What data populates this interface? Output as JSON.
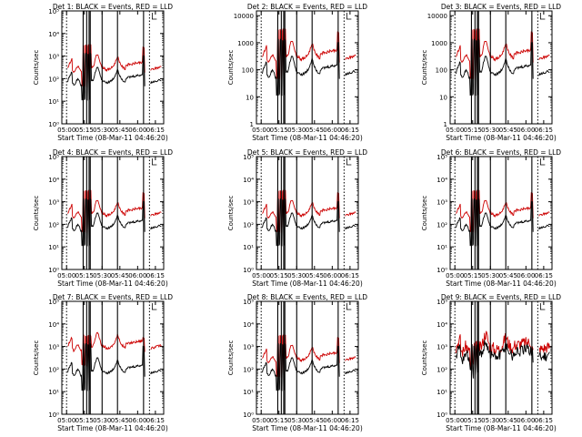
{
  "chart_data": [
    {
      "type": "line",
      "title": "Det 1: BLACK = Events, RED = LLD",
      "xlabel": "Start Time (08-Mar-11 04:46:20)",
      "ylabel": "Counts/sec",
      "yscale": "log",
      "yticks": [
        {
          "label": "10⁰",
          "value": 1
        },
        {
          "label": "10¹",
          "value": 10
        },
        {
          "label": "10²",
          "value": 100
        },
        {
          "label": "10³",
          "value": 1000
        },
        {
          "label": "10⁴",
          "value": 10000
        },
        {
          "label": "10⁵",
          "value": 100000
        }
      ],
      "ylim": [
        1,
        100000
      ],
      "xlim": [
        "04:56",
        "06:22"
      ],
      "xticks": [
        "05:00",
        "05:15",
        "05:30",
        "05:45",
        "06:00",
        "06:15"
      ],
      "dotted_lines": [
        "05:00",
        "06:10"
      ],
      "vertical_lines": [
        "05:14",
        "05:17",
        "05:19",
        "05:20",
        "05:30",
        "05:43",
        "06:05"
      ],
      "series": [
        {
          "color": "#cc0000",
          "base": 300,
          "spike": 6000
        },
        {
          "color": "#000000",
          "base": 80,
          "spike": 2500
        }
      ]
    },
    {
      "type": "line",
      "title": "Det 2: BLACK = Events, RED = LLD",
      "xlabel": "Start Time (08-Mar-11 04:46:20)",
      "ylabel": "Counts/sec",
      "yscale": "log",
      "yticks": [
        {
          "label": "1",
          "value": 1
        },
        {
          "label": "10",
          "value": 10
        },
        {
          "label": "100",
          "value": 100
        },
        {
          "label": "1000",
          "value": 1000
        },
        {
          "label": "10000",
          "value": 10000
        }
      ],
      "ylim": [
        1,
        15000
      ],
      "xlim": [
        "04:56",
        "06:22"
      ],
      "xticks": [
        "05:00",
        "05:15",
        "05:30",
        "05:45",
        "06:00",
        "06:15"
      ],
      "dotted_lines": [
        "05:00",
        "06:10"
      ],
      "vertical_lines": [
        "05:14",
        "05:17",
        "05:19",
        "05:20",
        "05:30",
        "05:43",
        "06:05"
      ],
      "series": [
        {
          "color": "#cc0000",
          "base": 300,
          "spike": 6000
        },
        {
          "color": "#000000",
          "base": 80,
          "spike": 2500
        }
      ]
    },
    {
      "type": "line",
      "title": "Det 3: BLACK = Events, RED = LLD",
      "xlabel": "Start Time (08-Mar-11 04:46:20)",
      "ylabel": "Counts/sec",
      "yscale": "log",
      "yticks": [
        {
          "label": "1",
          "value": 1
        },
        {
          "label": "10",
          "value": 10
        },
        {
          "label": "100",
          "value": 100
        },
        {
          "label": "1000",
          "value": 1000
        },
        {
          "label": "10000",
          "value": 10000
        }
      ],
      "ylim": [
        1,
        15000
      ],
      "xlim": [
        "04:56",
        "06:22"
      ],
      "xticks": [
        "05:00",
        "05:15",
        "05:30",
        "05:45",
        "06:00",
        "06:15"
      ],
      "dotted_lines": [
        "05:00",
        "06:10"
      ],
      "vertical_lines": [
        "05:14",
        "05:17",
        "05:19",
        "05:20",
        "05:30",
        "05:43",
        "06:05"
      ],
      "series": [
        {
          "color": "#cc0000",
          "base": 300,
          "spike": 6000
        },
        {
          "color": "#000000",
          "base": 80,
          "spike": 2500
        }
      ]
    },
    {
      "type": "line",
      "title": "Det 4: BLACK = Events, RED = LLD",
      "xlabel": "Start Time (08-Mar-11 04:46:20)",
      "ylabel": "Counts/sec",
      "yscale": "log",
      "yticks": [
        {
          "label": "10⁰",
          "value": 1
        },
        {
          "label": "10¹",
          "value": 10
        },
        {
          "label": "10²",
          "value": 100
        },
        {
          "label": "10³",
          "value": 1000
        },
        {
          "label": "10⁴",
          "value": 10000
        },
        {
          "label": "10⁵",
          "value": 100000
        }
      ],
      "ylim": [
        1,
        100000
      ],
      "xlim": [
        "04:56",
        "06:22"
      ],
      "xticks": [
        "05:00",
        "05:15",
        "05:30",
        "05:45",
        "06:00",
        "06:15"
      ],
      "dotted_lines": [
        "05:00",
        "06:10"
      ],
      "vertical_lines": [
        "05:14",
        "05:17",
        "05:19",
        "05:20",
        "05:30",
        "05:43",
        "06:05"
      ],
      "series": [
        {
          "color": "#cc0000",
          "base": 300,
          "spike": 6000
        },
        {
          "color": "#000000",
          "base": 80,
          "spike": 2500
        }
      ]
    },
    {
      "type": "line",
      "title": "Det 5: BLACK = Events, RED = LLD",
      "xlabel": "Start Time (08-Mar-11 04:46:20)",
      "ylabel": "Counts/sec",
      "yscale": "log",
      "yticks": [
        {
          "label": "10⁰",
          "value": 1
        },
        {
          "label": "10¹",
          "value": 10
        },
        {
          "label": "10²",
          "value": 100
        },
        {
          "label": "10³",
          "value": 1000
        },
        {
          "label": "10⁴",
          "value": 10000
        },
        {
          "label": "10⁵",
          "value": 100000
        }
      ],
      "ylim": [
        1,
        100000
      ],
      "xlim": [
        "04:56",
        "06:22"
      ],
      "xticks": [
        "05:00",
        "05:15",
        "05:30",
        "05:45",
        "06:00",
        "06:15"
      ],
      "dotted_lines": [
        "05:00",
        "06:10"
      ],
      "vertical_lines": [
        "05:14",
        "05:17",
        "05:19",
        "05:20",
        "05:30",
        "05:43",
        "06:05"
      ],
      "series": [
        {
          "color": "#cc0000",
          "base": 300,
          "spike": 6000
        },
        {
          "color": "#000000",
          "base": 80,
          "spike": 2500
        }
      ]
    },
    {
      "type": "line",
      "title": "Det 6: BLACK = Events, RED = LLD",
      "xlabel": "Start Time (08-Mar-11 04:46:20)",
      "ylabel": "Counts/sec",
      "yscale": "log",
      "yticks": [
        {
          "label": "10⁰",
          "value": 1
        },
        {
          "label": "10¹",
          "value": 10
        },
        {
          "label": "10²",
          "value": 100
        },
        {
          "label": "10³",
          "value": 1000
        },
        {
          "label": "10⁴",
          "value": 10000
        },
        {
          "label": "10⁵",
          "value": 100000
        }
      ],
      "ylim": [
        1,
        100000
      ],
      "xlim": [
        "04:56",
        "06:22"
      ],
      "xticks": [
        "05:00",
        "05:15",
        "05:30",
        "05:45",
        "06:00",
        "06:15"
      ],
      "dotted_lines": [
        "05:00",
        "06:10"
      ],
      "vertical_lines": [
        "05:14",
        "05:17",
        "05:19",
        "05:20",
        "05:30",
        "05:43",
        "06:05"
      ],
      "series": [
        {
          "color": "#cc0000",
          "base": 300,
          "spike": 6000
        },
        {
          "color": "#000000",
          "base": 80,
          "spike": 2500
        }
      ]
    },
    {
      "type": "line",
      "title": "Det 7: BLACK = Events, RED = LLD",
      "xlabel": "Start Time (08-Mar-11 04:46:20)",
      "ylabel": "Counts/sec",
      "yscale": "log",
      "yticks": [
        {
          "label": "10⁰",
          "value": 1
        },
        {
          "label": "10¹",
          "value": 10
        },
        {
          "label": "10²",
          "value": 100
        },
        {
          "label": "10³",
          "value": 1000
        },
        {
          "label": "10⁴",
          "value": 10000
        },
        {
          "label": "10⁵",
          "value": 100000
        }
      ],
      "ylim": [
        1,
        100000
      ],
      "xlim": [
        "04:56",
        "06:22"
      ],
      "xticks": [
        "05:00",
        "05:15",
        "05:30",
        "05:45",
        "06:00",
        "06:15"
      ],
      "dotted_lines": [
        "05:00",
        "06:10"
      ],
      "vertical_lines": [
        "05:14",
        "05:17",
        "05:19",
        "05:20",
        "05:30",
        "05:43",
        "06:05"
      ],
      "series": [
        {
          "color": "#cc0000",
          "base": 1000,
          "spike": 6000
        },
        {
          "color": "#000000",
          "base": 80,
          "spike": 2500
        }
      ]
    },
    {
      "type": "line",
      "title": "Det 8: BLACK = Events, RED = LLD",
      "xlabel": "Start Time (08-Mar-11 04:46:20)",
      "ylabel": "Counts/sec",
      "yscale": "log",
      "yticks": [
        {
          "label": "10⁰",
          "value": 1
        },
        {
          "label": "10¹",
          "value": 10
        },
        {
          "label": "10²",
          "value": 100
        },
        {
          "label": "10³",
          "value": 1000
        },
        {
          "label": "10⁴",
          "value": 10000
        },
        {
          "label": "10⁵",
          "value": 100000
        }
      ],
      "ylim": [
        1,
        100000
      ],
      "xlim": [
        "04:56",
        "06:22"
      ],
      "xticks": [
        "05:00",
        "05:15",
        "05:30",
        "05:45",
        "06:00",
        "06:15"
      ],
      "dotted_lines": [
        "05:00",
        "06:10"
      ],
      "vertical_lines": [
        "05:14",
        "05:17",
        "05:19",
        "05:20",
        "05:30",
        "05:43",
        "06:05"
      ],
      "series": [
        {
          "color": "#cc0000",
          "base": 300,
          "spike": 6000
        },
        {
          "color": "#000000",
          "base": 80,
          "spike": 2500
        }
      ]
    },
    {
      "type": "line",
      "title": "Det 9: BLACK = Events, RED = LLD",
      "xlabel": "Start Time (08-Mar-11 04:46:20)",
      "ylabel": "Counts/sec",
      "yscale": "log",
      "yticks": [
        {
          "label": "10⁰",
          "value": 1
        },
        {
          "label": "10¹",
          "value": 10
        },
        {
          "label": "10²",
          "value": 100
        },
        {
          "label": "10³",
          "value": 1000
        },
        {
          "label": "10⁴",
          "value": 10000
        },
        {
          "label": "10⁵",
          "value": 100000
        }
      ],
      "ylim": [
        1,
        100000
      ],
      "xlim": [
        "04:56",
        "06:22"
      ],
      "xticks": [
        "05:00",
        "05:15",
        "05:30",
        "05:45",
        "06:00",
        "06:15"
      ],
      "dotted_lines": [
        "05:00",
        "06:10"
      ],
      "vertical_lines": [
        "05:14",
        "05:17",
        "05:19",
        "05:20",
        "05:30",
        "05:43",
        "06:05"
      ],
      "series": [
        {
          "color": "#cc0000",
          "base": 900,
          "spike": 2000
        },
        {
          "color": "#000000",
          "base": 400,
          "spike": 1500
        }
      ]
    }
  ]
}
